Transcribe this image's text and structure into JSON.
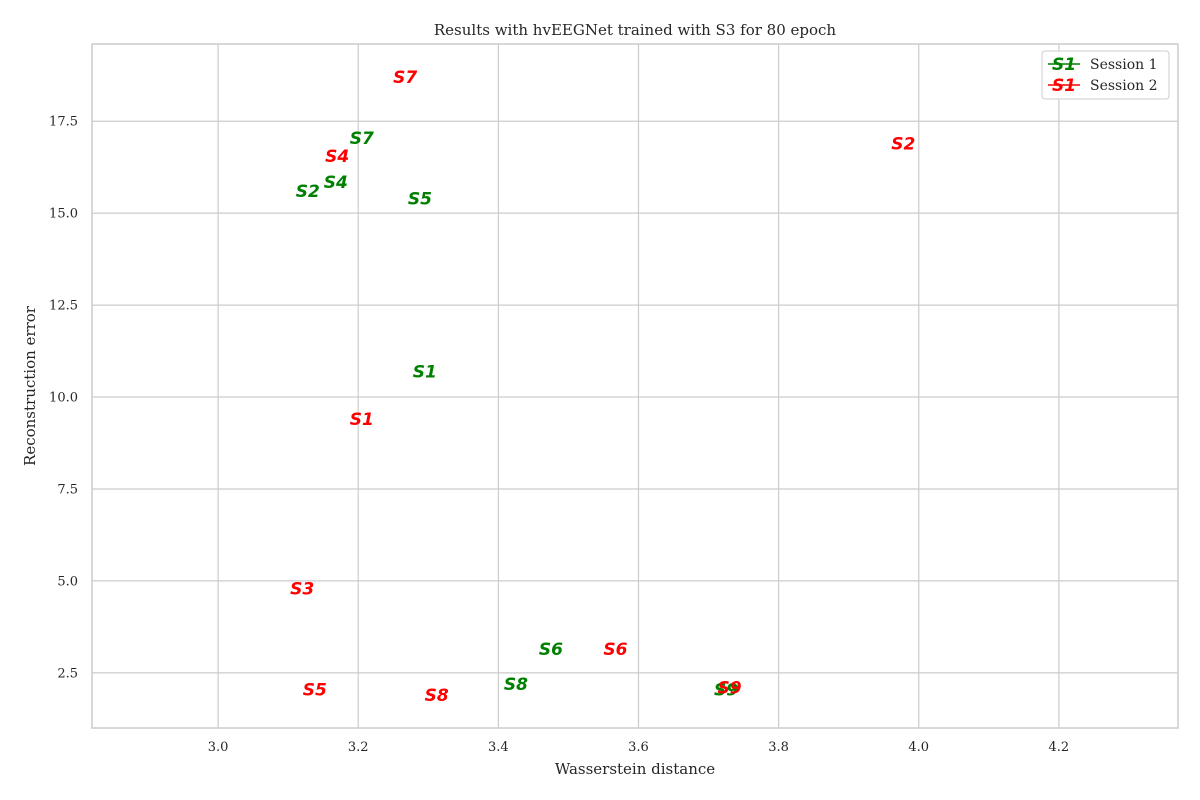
{
  "chart_data": {
    "type": "scatter",
    "title": "Results with hvEEGNet trained with S3 for 80 epoch",
    "xlabel": "Wasserstein distance",
    "ylabel": "Reconstruction error",
    "xlim": [
      2.82,
      4.37
    ],
    "ylim": [
      1.0,
      19.6
    ],
    "xticks": [
      3.0,
      3.2,
      3.4,
      3.6,
      3.8,
      4.0,
      4.2
    ],
    "yticks": [
      2.5,
      5.0,
      7.5,
      10.0,
      12.5,
      15.0,
      17.5
    ],
    "grid": true,
    "legend_position": "top-right",
    "legend_marker_text": "S1",
    "series": [
      {
        "name": "Session 1",
        "color": "#008000",
        "points": [
          {
            "label": "S1",
            "x": 3.295,
            "y": 10.7
          },
          {
            "label": "S2",
            "x": 3.128,
            "y": 15.6
          },
          {
            "label": "S4",
            "x": 3.168,
            "y": 15.85
          },
          {
            "label": "S5",
            "x": 3.288,
            "y": 15.4
          },
          {
            "label": "S6",
            "x": 3.475,
            "y": 3.15
          },
          {
            "label": "S7",
            "x": 3.205,
            "y": 17.05
          },
          {
            "label": "S8",
            "x": 3.425,
            "y": 2.2
          },
          {
            "label": "S9",
            "x": 3.725,
            "y": 2.05
          }
        ]
      },
      {
        "name": "Session 2",
        "color": "#ff0000",
        "points": [
          {
            "label": "S1",
            "x": 3.205,
            "y": 9.4
          },
          {
            "label": "S2",
            "x": 3.978,
            "y": 16.9
          },
          {
            "label": "S3",
            "x": 3.12,
            "y": 4.8
          },
          {
            "label": "S4",
            "x": 3.17,
            "y": 16.55
          },
          {
            "label": "S5",
            "x": 3.138,
            "y": 2.05
          },
          {
            "label": "S6",
            "x": 3.567,
            "y": 3.15
          },
          {
            "label": "S7",
            "x": 3.267,
            "y": 18.7
          },
          {
            "label": "S8",
            "x": 3.312,
            "y": 1.9
          },
          {
            "label": "S9",
            "x": 3.73,
            "y": 2.1
          }
        ]
      }
    ]
  }
}
